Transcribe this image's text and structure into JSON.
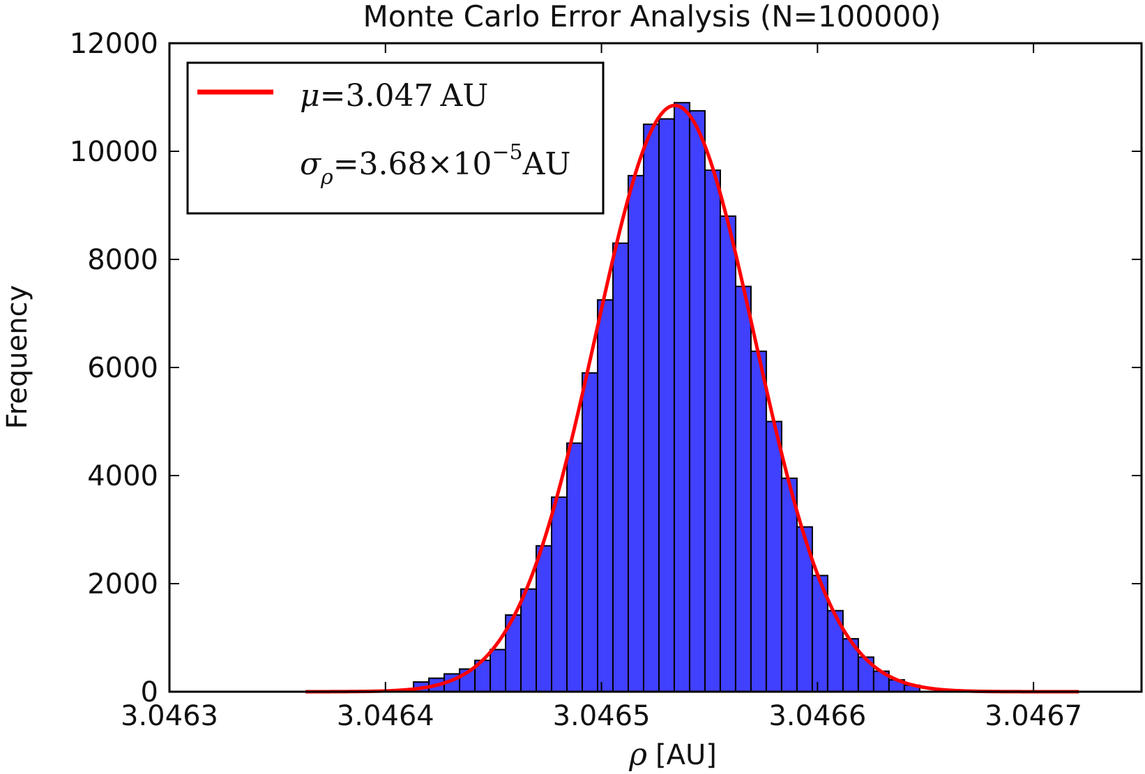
{
  "chart_data": {
    "type": "bar",
    "title": "Monte Carlo Error Analysis (N=100000)",
    "xlabel_symbol": "ρ",
    "xlabel_unit": "[AU]",
    "ylabel": "Frequency",
    "xlim": [
      3.0463,
      3.04675
    ],
    "ylim": [
      0,
      12000
    ],
    "xticks": [
      3.0463,
      3.0464,
      3.0465,
      3.0466,
      3.0467
    ],
    "xtick_labels": [
      "3.0463",
      "3.0464",
      "3.0465",
      "3.0466",
      "3.0467"
    ],
    "yticks": [
      0,
      2000,
      4000,
      6000,
      8000,
      10000,
      12000
    ],
    "ytick_labels": [
      "0",
      "2000",
      "4000",
      "6000",
      "8000",
      "10000",
      "12000"
    ],
    "bar_color": "#4040ff",
    "fit_color": "#ff0000",
    "grid": false,
    "legend_position": "upper-left",
    "legend": {
      "mu": {
        "symbol": "μ",
        "value": "=3.047",
        "unit": "AU"
      },
      "sigma": {
        "symbol": "σ",
        "sub": "ρ",
        "value": "=3.68×10",
        "exp": "−5",
        "unit": "AU"
      }
    },
    "histogram": {
      "bin_edges_start": 3.046413,
      "bin_width": 7.1e-06,
      "counts": [
        180,
        250,
        330,
        420,
        580,
        780,
        1420,
        1900,
        2700,
        3600,
        4600,
        5900,
        7250,
        8300,
        9550,
        10500,
        10600,
        10900,
        10750,
        9650,
        8800,
        7500,
        6300,
        5000,
        3950,
        3050,
        2150,
        1500,
        980,
        640,
        380,
        220,
        120
      ]
    },
    "fit": {
      "mu": 3.046534,
      "sigma": 3.68e-05,
      "peak": 10850,
      "x_range": [
        3.046363,
        3.046721
      ]
    }
  }
}
